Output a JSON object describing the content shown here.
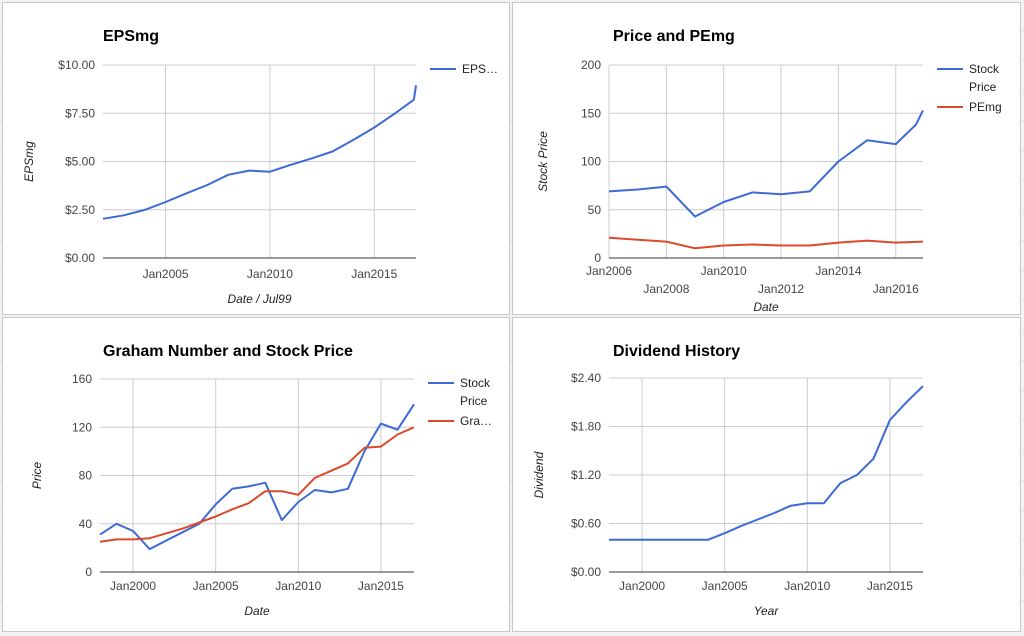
{
  "chart_data": [
    {
      "type": "line",
      "title": "EPSmg",
      "xlabel": "Date / Jul99",
      "ylabel": "EPSmg",
      "xlim": [
        2002.0,
        2017.0
      ],
      "ylim": [
        0,
        10
      ],
      "x_ticks": [
        {
          "value": 2005,
          "label": "Jan2005"
        },
        {
          "value": 2010,
          "label": "Jan2010"
        },
        {
          "value": 2015,
          "label": "Jan2015"
        }
      ],
      "y_ticks": [
        {
          "value": 0,
          "label": "$0.00"
        },
        {
          "value": 2.5,
          "label": "$2.50"
        },
        {
          "value": 5,
          "label": "$5.00"
        },
        {
          "value": 7.5,
          "label": "$7.50"
        },
        {
          "value": 10,
          "label": "$10.00"
        }
      ],
      "grid": true,
      "legend_position": "right",
      "series": [
        {
          "name": "EPS…",
          "color": "#3d6ad6",
          "x": [
            2002.0,
            2003.0,
            2004.0,
            2005.0,
            2006.0,
            2007.0,
            2008.0,
            2009.0,
            2010.0,
            2011.0,
            2012.0,
            2013.0,
            2014.0,
            2015.0,
            2016.0,
            2016.9,
            2017.0
          ],
          "y": [
            2.03,
            2.21,
            2.49,
            2.9,
            3.35,
            3.78,
            4.31,
            4.53,
            4.47,
            4.83,
            5.16,
            5.52,
            6.12,
            6.76,
            7.5,
            8.2,
            8.95
          ]
        }
      ]
    },
    {
      "type": "line",
      "title": "Price and PEmg",
      "xlabel": "Date",
      "ylabel": "Stock Price",
      "xlim": [
        2006.0,
        2016.95
      ],
      "ylim": [
        0,
        200
      ],
      "x_ticks": [
        {
          "value": 2006,
          "label": "Jan2006",
          "row": 0
        },
        {
          "value": 2008,
          "label": "Jan2008",
          "row": 1
        },
        {
          "value": 2010,
          "label": "Jan2010",
          "row": 0
        },
        {
          "value": 2012,
          "label": "Jan2012",
          "row": 1
        },
        {
          "value": 2014,
          "label": "Jan2014",
          "row": 0
        },
        {
          "value": 2016,
          "label": "Jan2016",
          "row": 1
        }
      ],
      "y_ticks": [
        {
          "value": 0,
          "label": "0"
        },
        {
          "value": 50,
          "label": "50"
        },
        {
          "value": 100,
          "label": "100"
        },
        {
          "value": 150,
          "label": "150"
        },
        {
          "value": 200,
          "label": "200"
        }
      ],
      "grid": true,
      "legend_position": "right",
      "series": [
        {
          "name": "Stock Price",
          "color": "#3d6ad6",
          "x": [
            2006.0,
            2007.0,
            2008.0,
            2009.0,
            2010.0,
            2011.0,
            2012.0,
            2013.0,
            2014.0,
            2015.0,
            2016.0,
            2016.7,
            2016.95
          ],
          "y": [
            69,
            71,
            74,
            43,
            58,
            68,
            66,
            69,
            100,
            122,
            118,
            138,
            153
          ]
        },
        {
          "name": "PEmg",
          "color": "#db4a2a",
          "x": [
            2006.0,
            2007.0,
            2008.0,
            2009.0,
            2010.0,
            2011.0,
            2012.0,
            2013.0,
            2014.0,
            2015.0,
            2016.0,
            2016.95
          ],
          "y": [
            21,
            19,
            17,
            10,
            13,
            14,
            13,
            13,
            16,
            18,
            16,
            17
          ]
        }
      ]
    },
    {
      "type": "line",
      "title": "Graham Number and Stock Price",
      "xlabel": "Date",
      "ylabel": "Price",
      "xlim": [
        1998.0,
        2017.0
      ],
      "ylim": [
        0,
        160
      ],
      "x_ticks": [
        {
          "value": 2000,
          "label": "Jan2000"
        },
        {
          "value": 2005,
          "label": "Jan2005"
        },
        {
          "value": 2010,
          "label": "Jan2010"
        },
        {
          "value": 2015,
          "label": "Jan2015"
        }
      ],
      "y_ticks": [
        {
          "value": 0,
          "label": "0"
        },
        {
          "value": 40,
          "label": "40"
        },
        {
          "value": 80,
          "label": "80"
        },
        {
          "value": 120,
          "label": "120"
        },
        {
          "value": 160,
          "label": "160"
        }
      ],
      "grid": true,
      "legend_position": "right",
      "series": [
        {
          "name": "Stock Price",
          "color": "#3d6ad6",
          "x": [
            1998.0,
            1999.0,
            2000.0,
            2001.0,
            2002.0,
            2003.0,
            2004.0,
            2005.0,
            2006.0,
            2007.0,
            2008.0,
            2009.0,
            2010.0,
            2011.0,
            2012.0,
            2013.0,
            2014.0,
            2015.0,
            2016.0,
            2017.0
          ],
          "y": [
            31,
            40,
            34,
            19,
            26,
            33,
            40,
            56,
            69,
            71,
            74,
            43,
            58,
            68,
            66,
            69,
            100,
            123,
            118,
            139
          ]
        },
        {
          "name": "Gra…",
          "color": "#db4a2a",
          "x": [
            1998.0,
            1999.0,
            2000.0,
            2001.0,
            2002.0,
            2003.0,
            2004.0,
            2005.0,
            2006.0,
            2007.0,
            2008.0,
            2009.0,
            2010.0,
            2011.0,
            2012.0,
            2013.0,
            2014.0,
            2015.0,
            2016.0,
            2017.0
          ],
          "y": [
            25,
            27,
            27,
            28,
            32,
            36,
            41,
            46,
            52,
            57,
            67,
            67,
            64,
            78,
            84,
            90,
            103,
            104,
            114,
            120
          ]
        }
      ]
    },
    {
      "type": "line",
      "title": "Dividend History",
      "xlabel": "Year",
      "ylabel": "Dividend",
      "xlim": [
        1998.0,
        2017.0
      ],
      "ylim": [
        0,
        2.4
      ],
      "x_ticks": [
        {
          "value": 2000,
          "label": "Jan2000"
        },
        {
          "value": 2005,
          "label": "Jan2005"
        },
        {
          "value": 2010,
          "label": "Jan2010"
        },
        {
          "value": 2015,
          "label": "Jan2015"
        }
      ],
      "y_ticks": [
        {
          "value": 0,
          "label": "$0.00"
        },
        {
          "value": 0.6,
          "label": "$0.60"
        },
        {
          "value": 1.2,
          "label": "$1.20"
        },
        {
          "value": 1.8,
          "label": "$1.80"
        },
        {
          "value": 2.4,
          "label": "$2.40"
        }
      ],
      "grid": true,
      "legend_position": "none",
      "series": [
        {
          "color": "#3d6ad6",
          "x": [
            1998.0,
            1999.0,
            2000.0,
            2001.0,
            2002.0,
            2003.0,
            2004.0,
            2005.0,
            2006.0,
            2007.0,
            2008.0,
            2009.0,
            2010.0,
            2011.0,
            2012.0,
            2013.0,
            2014.0,
            2015.0,
            2016.0,
            2017.0
          ],
          "y": [
            0.4,
            0.4,
            0.4,
            0.4,
            0.4,
            0.4,
            0.4,
            0.48,
            0.57,
            0.65,
            0.73,
            0.82,
            0.85,
            0.85,
            1.1,
            1.2,
            1.4,
            1.88,
            2.1,
            2.3
          ]
        }
      ]
    }
  ]
}
